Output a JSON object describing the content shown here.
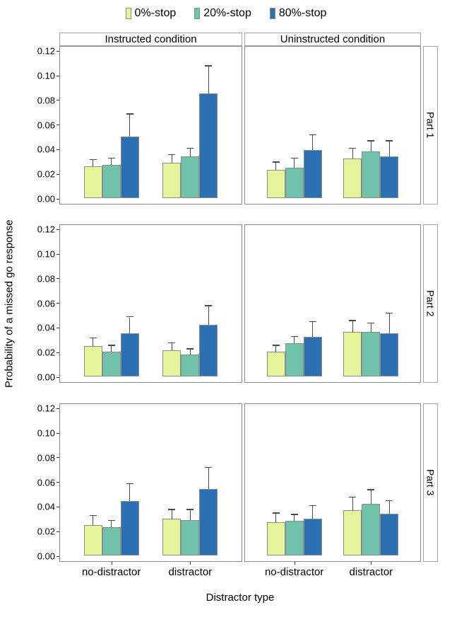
{
  "figure": {
    "legend": {
      "items": [
        {
          "label": "0%-stop",
          "color": "#e6f59b"
        },
        {
          "label": "20%-stop",
          "color": "#70c3a8"
        },
        {
          "label": "80%-stop",
          "color": "#2b70b2"
        }
      ]
    },
    "col_headers": [
      "Instructed condition",
      "Uninstructed condition"
    ],
    "row_headers": [
      "Part 1",
      "Part 2",
      "Part 3"
    ],
    "y_axis": {
      "title": "Probability of a missed go response",
      "ticks": [
        "0.12",
        "0.10",
        "0.08",
        "0.06",
        "0.04",
        "0.02",
        "0.00"
      ]
    },
    "x_axis": {
      "title": "Distractor type",
      "categories": [
        "no-distractor",
        "distractor"
      ]
    }
  },
  "chart_data": {
    "type": "bar",
    "title": "",
    "facet_columns": [
      "Instructed condition",
      "Uninstructed condition"
    ],
    "facet_rows": [
      "Part 1",
      "Part 2",
      "Part 3"
    ],
    "series_names": [
      "0%-stop",
      "20%-stop",
      "80%-stop"
    ],
    "series_colors": [
      "#e6f59b",
      "#70c3a8",
      "#2b70b2"
    ],
    "categories": [
      "no-distractor",
      "distractor"
    ],
    "xlabel": "Distractor type",
    "ylabel": "Probability of a missed go response",
    "ylim": [
      0,
      0.125
    ],
    "ytick_values": [
      0.12,
      0.1,
      0.08,
      0.06,
      0.04,
      0.02,
      0.0
    ],
    "error_bars": "upper whisker only",
    "panels": [
      {
        "row": "Part 1",
        "col": "Instructed condition",
        "groups": [
          {
            "category": "no-distractor",
            "values": [
              0.026,
              0.027,
              0.05
            ],
            "error_high": [
              0.031,
              0.032,
              0.068
            ]
          },
          {
            "category": "distractor",
            "values": [
              0.029,
              0.034,
              0.085
            ],
            "error_high": [
              0.035,
              0.04,
              0.107
            ]
          }
        ]
      },
      {
        "row": "Part 1",
        "col": "Uninstructed condition",
        "groups": [
          {
            "category": "no-distractor",
            "values": [
              0.023,
              0.025,
              0.039
            ],
            "error_high": [
              0.029,
              0.032,
              0.051
            ]
          },
          {
            "category": "distractor",
            "values": [
              0.032,
              0.038,
              0.034
            ],
            "error_high": [
              0.04,
              0.046,
              0.046
            ]
          }
        ]
      },
      {
        "row": "Part 2",
        "col": "Instructed condition",
        "groups": [
          {
            "category": "no-distractor",
            "values": [
              0.025,
              0.02,
              0.035
            ],
            "error_high": [
              0.031,
              0.025,
              0.048
            ]
          },
          {
            "category": "distractor",
            "values": [
              0.021,
              0.018,
              0.042
            ],
            "error_high": [
              0.027,
              0.022,
              0.057
            ]
          }
        ]
      },
      {
        "row": "Part 2",
        "col": "Uninstructed condition",
        "groups": [
          {
            "category": "no-distractor",
            "values": [
              0.02,
              0.027,
              0.032
            ],
            "error_high": [
              0.025,
              0.032,
              0.044
            ]
          },
          {
            "category": "distractor",
            "values": [
              0.036,
              0.036,
              0.035
            ],
            "error_high": [
              0.045,
              0.043,
              0.051
            ]
          }
        ]
      },
      {
        "row": "Part 3",
        "col": "Instructed condition",
        "groups": [
          {
            "category": "no-distractor",
            "values": [
              0.025,
              0.023,
              0.044
            ],
            "error_high": [
              0.032,
              0.028,
              0.058
            ]
          },
          {
            "category": "distractor",
            "values": [
              0.03,
              0.029,
              0.054
            ],
            "error_high": [
              0.037,
              0.037,
              0.071
            ]
          }
        ]
      },
      {
        "row": "Part 3",
        "col": "Uninstructed condition",
        "groups": [
          {
            "category": "no-distractor",
            "values": [
              0.027,
              0.028,
              0.03
            ],
            "error_high": [
              0.034,
              0.033,
              0.04
            ]
          },
          {
            "category": "distractor",
            "values": [
              0.037,
              0.042,
              0.034
            ],
            "error_high": [
              0.047,
              0.053,
              0.044
            ]
          }
        ]
      }
    ]
  }
}
